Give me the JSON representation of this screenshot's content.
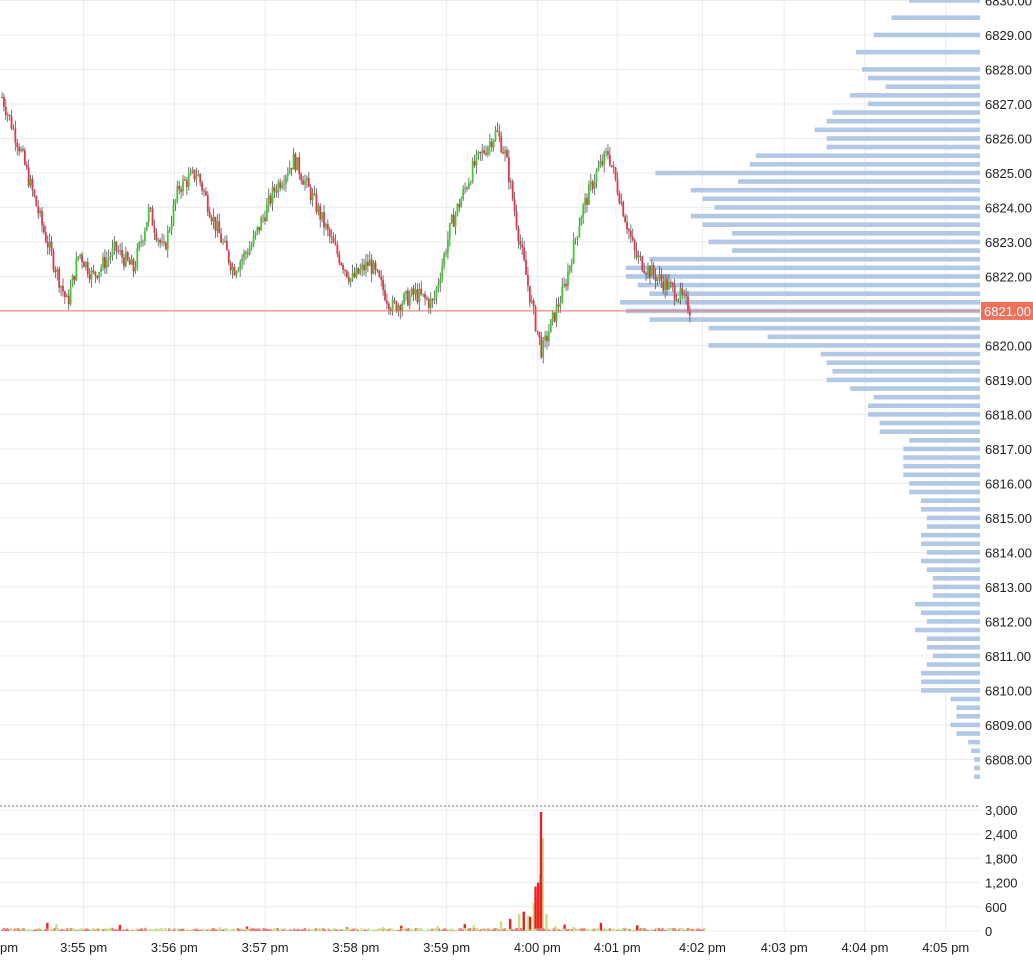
{
  "chart_data": [
    {
      "type": "candlestick",
      "title": "",
      "xlabel": "",
      "ylabel": "",
      "y_tick_labels": [
        "6830.00",
        "6829.00",
        "6828.00",
        "6827.00",
        "6826.00",
        "6825.00",
        "6824.00",
        "6823.00",
        "6822.00",
        "6821.00",
        "6820.00",
        "6819.00",
        "6818.00",
        "6817.00",
        "6816.00",
        "6815.00",
        "6814.00",
        "6813.00",
        "6812.00",
        "6811.00",
        "6810.00",
        "6809.00",
        "6808.00"
      ],
      "y_ticks": [
        6830,
        6829,
        6828,
        6827,
        6826,
        6825,
        6824,
        6823,
        6822,
        6821,
        6820,
        6819,
        6818,
        6817,
        6816,
        6815,
        6814,
        6813,
        6812,
        6811,
        6810,
        6809,
        6808
      ],
      "ylim": [
        6807.2,
        6830.1
      ],
      "x_tick_labels": [
        "pm",
        "3:55 pm",
        "3:56 pm",
        "3:57 pm",
        "3:58 pm",
        "3:59 pm",
        "4:00 pm",
        "4:01 pm",
        "4:02 pm",
        "4:03 pm",
        "4:04 pm",
        "4:05 pm"
      ],
      "x_ticks": [
        3.97,
        4.9,
        5.9,
        6.9,
        7.9,
        8.9,
        9.9,
        10.78,
        11.72,
        12.62,
        13.51,
        14.4
      ],
      "xlim": [
        4.0,
        14.8
      ],
      "grid": true,
      "last_price": 6821,
      "last_price_label": "6821.00",
      "colors": {
        "up": "#3ecb2f",
        "down": "#e8334d",
        "volume_profile": "#b3c8e6",
        "last_price": "#f0705a",
        "grid": "#ececec",
        "axis_text": "#222222"
      },
      "price_path": [
        [
          4.0,
          6827.2
        ],
        [
          4.2,
          6825.7
        ],
        [
          4.45,
          6823.4
        ],
        [
          4.62,
          6822.0
        ],
        [
          4.72,
          6821.2
        ],
        [
          4.85,
          6822.7
        ],
        [
          5.0,
          6822.0
        ],
        [
          5.25,
          6822.8
        ],
        [
          5.45,
          6822.2
        ],
        [
          5.62,
          6823.9
        ],
        [
          5.78,
          6822.7
        ],
        [
          5.95,
          6824.6
        ],
        [
          6.15,
          6825.0
        ],
        [
          6.35,
          6823.5
        ],
        [
          6.55,
          6822.2
        ],
        [
          6.75,
          6822.9
        ],
        [
          7.0,
          6824.5
        ],
        [
          7.22,
          6825.4
        ],
        [
          7.42,
          6824.3
        ],
        [
          7.65,
          6822.9
        ],
        [
          7.85,
          6821.9
        ],
        [
          8.05,
          6822.4
        ],
        [
          8.3,
          6821.1
        ],
        [
          8.55,
          6821.5
        ],
        [
          8.75,
          6821.2
        ],
        [
          8.95,
          6823.5
        ],
        [
          9.2,
          6825.2
        ],
        [
          9.45,
          6826.2
        ],
        [
          9.55,
          6825.5
        ],
        [
          9.72,
          6822.8
        ],
        [
          9.85,
          6821.0
        ],
        [
          9.95,
          6819.8
        ],
        [
          10.05,
          6820.6
        ],
        [
          10.2,
          6821.7
        ],
        [
          10.38,
          6823.8
        ],
        [
          10.55,
          6825.0
        ],
        [
          10.68,
          6825.6
        ],
        [
          10.82,
          6824.2
        ],
        [
          10.98,
          6822.6
        ],
        [
          11.12,
          6822.2
        ],
        [
          11.3,
          6821.8
        ],
        [
          11.45,
          6821.5
        ],
        [
          11.6,
          6821.0
        ]
      ],
      "volume_profile": [
        {
          "price": 6830.0,
          "volume": 12
        },
        {
          "price": 6829.5,
          "volume": 15
        },
        {
          "price": 6829.0,
          "volume": 18
        },
        {
          "price": 6828.5,
          "volume": 21
        },
        {
          "price": 6828.0,
          "volume": 20
        },
        {
          "price": 6827.75,
          "volume": 19
        },
        {
          "price": 6827.5,
          "volume": 16
        },
        {
          "price": 6827.25,
          "volume": 22
        },
        {
          "price": 6827.0,
          "volume": 19
        },
        {
          "price": 6826.75,
          "volume": 25
        },
        {
          "price": 6826.5,
          "volume": 26
        },
        {
          "price": 6826.25,
          "volume": 28
        },
        {
          "price": 6826.0,
          "volume": 26
        },
        {
          "price": 6825.75,
          "volume": 26
        },
        {
          "price": 6825.5,
          "volume": 38
        },
        {
          "price": 6825.25,
          "volume": 39
        },
        {
          "price": 6825.0,
          "volume": 55
        },
        {
          "price": 6824.75,
          "volume": 41
        },
        {
          "price": 6824.5,
          "volume": 49
        },
        {
          "price": 6824.25,
          "volume": 47
        },
        {
          "price": 6824.0,
          "volume": 45
        },
        {
          "price": 6823.75,
          "volume": 49
        },
        {
          "price": 6823.5,
          "volume": 47
        },
        {
          "price": 6823.25,
          "volume": 42
        },
        {
          "price": 6823.0,
          "volume": 46
        },
        {
          "price": 6822.75,
          "volume": 42
        },
        {
          "price": 6822.5,
          "volume": 56
        },
        {
          "price": 6822.25,
          "volume": 60
        },
        {
          "price": 6822.0,
          "volume": 60
        },
        {
          "price": 6821.75,
          "volume": 58
        },
        {
          "price": 6821.5,
          "volume": 56
        },
        {
          "price": 6821.25,
          "volume": 61
        },
        {
          "price": 6821.0,
          "volume": 60
        },
        {
          "price": 6820.75,
          "volume": 56
        },
        {
          "price": 6820.5,
          "volume": 46
        },
        {
          "price": 6820.25,
          "volume": 36
        },
        {
          "price": 6820.0,
          "volume": 46
        },
        {
          "price": 6819.75,
          "volume": 27
        },
        {
          "price": 6819.5,
          "volume": 26
        },
        {
          "price": 6819.25,
          "volume": 25
        },
        {
          "price": 6819.0,
          "volume": 26
        },
        {
          "price": 6818.75,
          "volume": 22
        },
        {
          "price": 6818.5,
          "volume": 18
        },
        {
          "price": 6818.25,
          "volume": 19
        },
        {
          "price": 6818.0,
          "volume": 19
        },
        {
          "price": 6817.75,
          "volume": 17
        },
        {
          "price": 6817.5,
          "volume": 17
        },
        {
          "price": 6817.25,
          "volume": 12
        },
        {
          "price": 6817.0,
          "volume": 13
        },
        {
          "price": 6816.75,
          "volume": 13
        },
        {
          "price": 6816.5,
          "volume": 13
        },
        {
          "price": 6816.25,
          "volume": 13
        },
        {
          "price": 6816.0,
          "volume": 12
        },
        {
          "price": 6815.75,
          "volume": 12
        },
        {
          "price": 6815.5,
          "volume": 10
        },
        {
          "price": 6815.25,
          "volume": 10
        },
        {
          "price": 6815.0,
          "volume": 9
        },
        {
          "price": 6814.75,
          "volume": 9
        },
        {
          "price": 6814.5,
          "volume": 10
        },
        {
          "price": 6814.25,
          "volume": 10
        },
        {
          "price": 6814.0,
          "volume": 9
        },
        {
          "price": 6813.75,
          "volume": 10
        },
        {
          "price": 6813.5,
          "volume": 9
        },
        {
          "price": 6813.25,
          "volume": 8
        },
        {
          "price": 6813.0,
          "volume": 8
        },
        {
          "price": 6812.75,
          "volume": 8
        },
        {
          "price": 6812.5,
          "volume": 11
        },
        {
          "price": 6812.25,
          "volume": 10
        },
        {
          "price": 6812.0,
          "volume": 9
        },
        {
          "price": 6811.75,
          "volume": 11
        },
        {
          "price": 6811.5,
          "volume": 9
        },
        {
          "price": 6811.25,
          "volume": 9
        },
        {
          "price": 6811.0,
          "volume": 8
        },
        {
          "price": 6810.75,
          "volume": 9
        },
        {
          "price": 6810.5,
          "volume": 10
        },
        {
          "price": 6810.25,
          "volume": 10
        },
        {
          "price": 6810.0,
          "volume": 10
        },
        {
          "price": 6809.75,
          "volume": 5
        },
        {
          "price": 6809.5,
          "volume": 4
        },
        {
          "price": 6809.25,
          "volume": 4
        },
        {
          "price": 6809.0,
          "volume": 5
        },
        {
          "price": 6808.75,
          "volume": 4
        },
        {
          "price": 6808.5,
          "volume": 2
        },
        {
          "price": 6808.25,
          "volume": 1.5
        },
        {
          "price": 6808.0,
          "volume": 1
        },
        {
          "price": 6807.75,
          "volume": 1
        },
        {
          "price": 6807.5,
          "volume": 1
        }
      ]
    },
    {
      "type": "bar",
      "title": "",
      "xlabel": "",
      "ylabel": "",
      "y_tick_labels": [
        "3,000",
        "2,400",
        "1,800",
        "1,200",
        "600",
        "0"
      ],
      "y_ticks": [
        3000,
        2400,
        1800,
        1200,
        600,
        0
      ],
      "ylim": [
        0,
        3000
      ],
      "xlim": [
        4.0,
        14.8
      ],
      "grid": true,
      "series": [
        {
          "color": "#c9e08a",
          "x": [
            4.1,
            4.6,
            5.2,
            5.8,
            6.4,
            7.0,
            7.6,
            8.2,
            8.8,
            9.2,
            9.5,
            9.7,
            9.8,
            9.86,
            9.9,
            9.93,
            9.96,
            10.0,
            10.1,
            10.3,
            10.6,
            10.9,
            11.2,
            11.6
          ],
          "values": [
            40,
            180,
            80,
            70,
            90,
            60,
            70,
            100,
            120,
            150,
            250,
            420,
            380,
            700,
            800,
            1400,
            2300,
            420,
            120,
            100,
            90,
            60,
            40,
            30
          ]
        },
        {
          "color": "#ee1c1c",
          "x": [
            4.5,
            5.3,
            6.7,
            7.8,
            8.4,
            9.1,
            9.6,
            9.75,
            9.82,
            9.88,
            9.91,
            9.94,
            10.2,
            10.6,
            11.0
          ],
          "values": [
            200,
            150,
            110,
            90,
            130,
            170,
            300,
            480,
            350,
            1100,
            1200,
            2950,
            160,
            200,
            140
          ]
        }
      ]
    }
  ]
}
